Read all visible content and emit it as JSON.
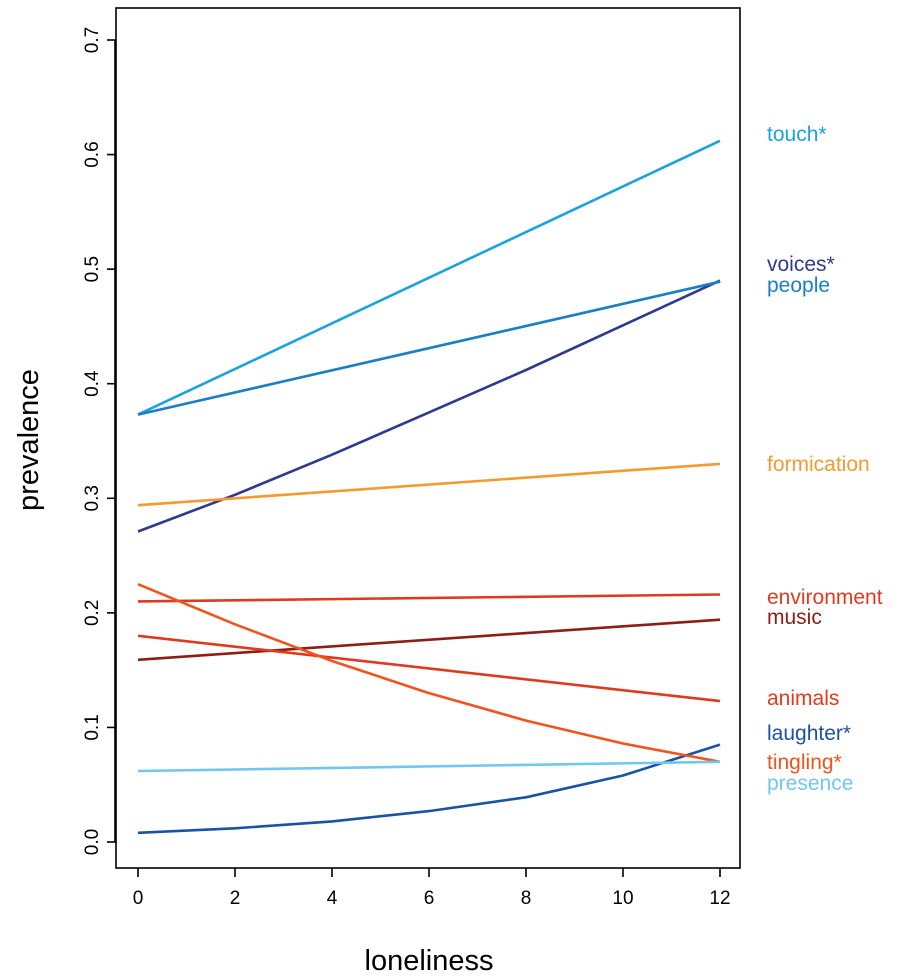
{
  "chart_data": {
    "type": "line",
    "xlabel": "loneliness",
    "ylabel": "prevalence",
    "xlim": [
      0,
      12
    ],
    "ylim": [
      0.0,
      0.7
    ],
    "x_ticks": [
      "0",
      "2",
      "4",
      "6",
      "8",
      "10",
      "12"
    ],
    "y_ticks": [
      "0.0",
      "0.1",
      "0.2",
      "0.3",
      "0.4",
      "0.5",
      "0.6",
      "0.7"
    ],
    "grid": false,
    "legend": "labels at right end of each line",
    "series": [
      {
        "name": "touch*",
        "color": "#1aa3dc",
        "x": [
          0,
          12
        ],
        "y": [
          0.373,
          0.612
        ]
      },
      {
        "name": "voices*",
        "color": "#2e3a8f",
        "x": [
          0,
          2,
          4,
          6,
          8,
          10,
          12
        ],
        "y": [
          0.271,
          0.303,
          0.338,
          0.375,
          0.412,
          0.451,
          0.49
        ]
      },
      {
        "name": "people",
        "color": "#1b7fc2",
        "x": [
          0,
          12
        ],
        "y": [
          0.373,
          0.489
        ]
      },
      {
        "name": "formication",
        "color": "#f59a2e",
        "x": [
          0,
          12
        ],
        "y": [
          0.294,
          0.33
        ]
      },
      {
        "name": "environment",
        "color": "#e03a1e",
        "x": [
          0,
          12
        ],
        "y": [
          0.21,
          0.216
        ]
      },
      {
        "name": "music",
        "color": "#8b1e16",
        "x": [
          0,
          12
        ],
        "y": [
          0.159,
          0.194
        ]
      },
      {
        "name": "animals",
        "color": "#e03a1e",
        "x": [
          0,
          12
        ],
        "y": [
          0.18,
          0.123
        ]
      },
      {
        "name": "laughter*",
        "color": "#1c52a6",
        "x": [
          0,
          2,
          4,
          6,
          8,
          10,
          12
        ],
        "y": [
          0.008,
          0.012,
          0.018,
          0.027,
          0.039,
          0.058,
          0.085
        ]
      },
      {
        "name": "tingling*",
        "color": "#f0541c",
        "x": [
          0,
          2,
          4,
          6,
          8,
          10,
          12
        ],
        "y": [
          0.225,
          0.19,
          0.158,
          0.13,
          0.106,
          0.086,
          0.07
        ]
      },
      {
        "name": "presence",
        "color": "#72c7ef",
        "x": [
          0,
          12
        ],
        "y": [
          0.062,
          0.07
        ]
      }
    ]
  }
}
